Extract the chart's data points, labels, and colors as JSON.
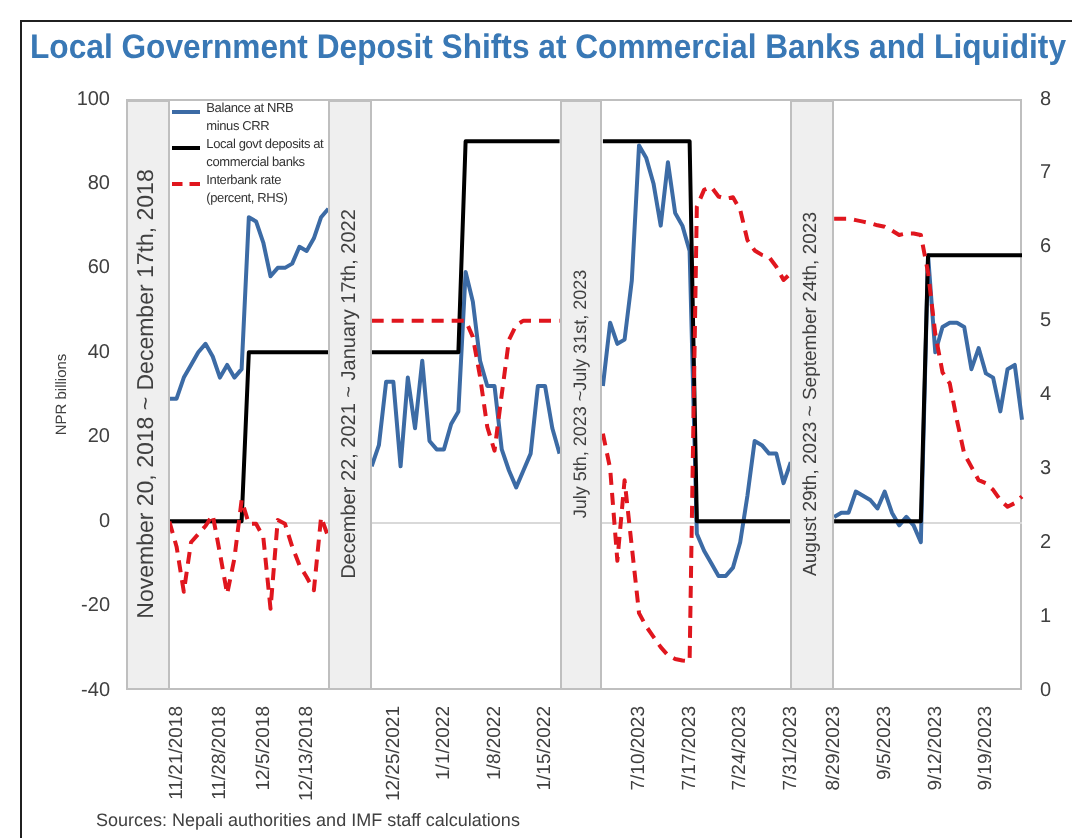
{
  "chart_data": {
    "type": "line",
    "title": "Local Government Deposit Shifts at Commercial Banks and Liquidity",
    "ylabel": "NPR billions",
    "categories": [
      null,
      null,
      null,
      null,
      null,
      null,
      null,
      "11/21/2018",
      null,
      null,
      null,
      null,
      null,
      "11/28/2018",
      null,
      null,
      null,
      null,
      null,
      "12/5/2018",
      null,
      null,
      null,
      null,
      null,
      "12/13/2018",
      null,
      null,
      null,
      null,
      null,
      null,
      null,
      null,
      null,
      null,
      null,
      "12/25/2021",
      null,
      null,
      null,
      null,
      null,
      null,
      "1/1/2022",
      null,
      null,
      null,
      null,
      null,
      null,
      "1/8/2022",
      null,
      null,
      null,
      null,
      null,
      null,
      "1/15/2022",
      null,
      null,
      null,
      null,
      null,
      null,
      null,
      null,
      null,
      null,
      null,
      null,
      "7/10/2023",
      null,
      null,
      null,
      null,
      null,
      null,
      "7/17/2023",
      null,
      null,
      null,
      null,
      null,
      null,
      "7/24/2023",
      null,
      null,
      null,
      null,
      null,
      null,
      "7/31/2023",
      null,
      null,
      null,
      null,
      null,
      "8/29/2023",
      null,
      null,
      null,
      null,
      null,
      null,
      "9/5/2023",
      null,
      null,
      null,
      null,
      null,
      null,
      "9/12/2023",
      null,
      null,
      null,
      null,
      null,
      null,
      "9/19/2023",
      null,
      null,
      null,
      null,
      null
    ],
    "series": [
      {
        "name": "Balance at NRB minus CRR",
        "color": "#3c6ba5",
        "values": [
          null,
          null,
          null,
          null,
          null,
          null,
          29,
          29,
          34,
          37,
          40,
          42,
          39,
          34,
          37,
          34,
          36,
          72,
          71,
          66,
          58,
          60,
          60,
          61,
          65,
          64,
          67,
          72,
          74,
          null,
          null,
          null,
          null,
          null,
          13,
          18,
          33,
          33,
          13,
          34,
          22,
          38,
          19,
          17,
          17,
          23,
          26,
          59,
          52,
          38,
          32,
          32,
          17,
          12,
          8,
          12,
          16,
          32,
          32,
          22,
          16,
          null,
          null,
          null,
          null,
          null,
          32,
          47,
          42,
          43,
          57,
          89,
          86,
          80,
          70,
          85,
          73,
          70,
          64,
          -3,
          -7,
          -10,
          -13,
          -13,
          -11,
          -5,
          6,
          19,
          18,
          16,
          16,
          9,
          14,
          null,
          null,
          null,
          null,
          null,
          1,
          2,
          2,
          7,
          6,
          5,
          3,
          7,
          2,
          -1,
          1,
          -1,
          -5,
          63,
          40,
          46,
          47,
          47,
          46,
          36,
          41,
          35,
          34,
          26,
          36,
          37,
          24
        ]
      },
      {
        "name": "Local govt deposits at commercial banks",
        "color": "#000000",
        "values": [
          null,
          null,
          null,
          null,
          null,
          null,
          0,
          0,
          0,
          0,
          0,
          0,
          0,
          0,
          0,
          0,
          0,
          40,
          40,
          40,
          40,
          40,
          40,
          40,
          40,
          40,
          40,
          40,
          40,
          null,
          null,
          null,
          null,
          null,
          40,
          40,
          40,
          40,
          40,
          40,
          40,
          40,
          40,
          40,
          40,
          40,
          40,
          90,
          90,
          90,
          90,
          90,
          90,
          90,
          90,
          90,
          90,
          90,
          90,
          90,
          90,
          null,
          null,
          null,
          null,
          null,
          90,
          90,
          90,
          90,
          90,
          90,
          90,
          90,
          90,
          90,
          90,
          90,
          90,
          0,
          0,
          0,
          0,
          0,
          0,
          0,
          0,
          0,
          0,
          0,
          0,
          0,
          0,
          null,
          null,
          null,
          null,
          null,
          0,
          0,
          0,
          0,
          0,
          0,
          0,
          0,
          0,
          0,
          0,
          0,
          0,
          63,
          63,
          63,
          63,
          63,
          63,
          63,
          63,
          63,
          63,
          63,
          63,
          63,
          63
        ]
      },
      {
        "name": "Interbank rate (percent, RHS)",
        "color": "#e0161e",
        "line_style": "dashed",
        "axis": "y2",
        "values": [
          null,
          null,
          null,
          null,
          null,
          null,
          2.28,
          1.94,
          1.33,
          2,
          2.11,
          2.22,
          2.37,
          1.85,
          1.3,
          1.78,
          2.57,
          2.25,
          2.25,
          2.07,
          1.1,
          2.3,
          2.25,
          1.94,
          1.69,
          1.53,
          1.35,
          2.34,
          2.07,
          null,
          null,
          null,
          null,
          null,
          5,
          5,
          5,
          5,
          5,
          5,
          5,
          5,
          5,
          5,
          5,
          5,
          5,
          5,
          4.78,
          4.24,
          3.56,
          3.24,
          4,
          4.74,
          4.94,
          5,
          5,
          5,
          5,
          5,
          5,
          null,
          null,
          null,
          null,
          null,
          3.47,
          3,
          1.75,
          2.84,
          1.94,
          1.04,
          0.86,
          0.72,
          0.58,
          0.47,
          0.42,
          0.4,
          0.39,
          6.54,
          6.77,
          6.81,
          6.68,
          6.65,
          6.67,
          6.5,
          6.09,
          5.95,
          5.89,
          5.86,
          5.73,
          5.55,
          5.64,
          null,
          null,
          null,
          null,
          null,
          6.38,
          6.38,
          6.38,
          6.36,
          6.34,
          6.32,
          6.29,
          6.27,
          6.22,
          6.16,
          6.18,
          6.18,
          6.16,
          5.65,
          4.82,
          4.3,
          4.15,
          3.65,
          3.2,
          3.02,
          2.84,
          2.8,
          2.71,
          2.57,
          2.48,
          2.53,
          2.62
        ]
      }
    ],
    "ylim": [
      -40,
      100
    ],
    "yticks": [
      -40,
      -20,
      0,
      20,
      40,
      60,
      80,
      100
    ],
    "y2lim": [
      0,
      8
    ],
    "y2ticks": [
      0,
      1,
      2,
      3,
      4,
      5,
      6,
      7,
      8
    ],
    "ref_lines": [
      {
        "axis": "y",
        "value": 0,
        "color": "#d9d9d9"
      }
    ],
    "legend": "top left",
    "annotations": [
      "November 20, 2018 ~ December 17th, 2018",
      "December 22, 2021 ~ January 17th, 2022",
      "July 5th, 2023 ~July 31st, 2023",
      "August 29th, 2023 ~ September 24th, 2023",
      "Sources: Nepali authorities and IMF staff calculations"
    ]
  }
}
